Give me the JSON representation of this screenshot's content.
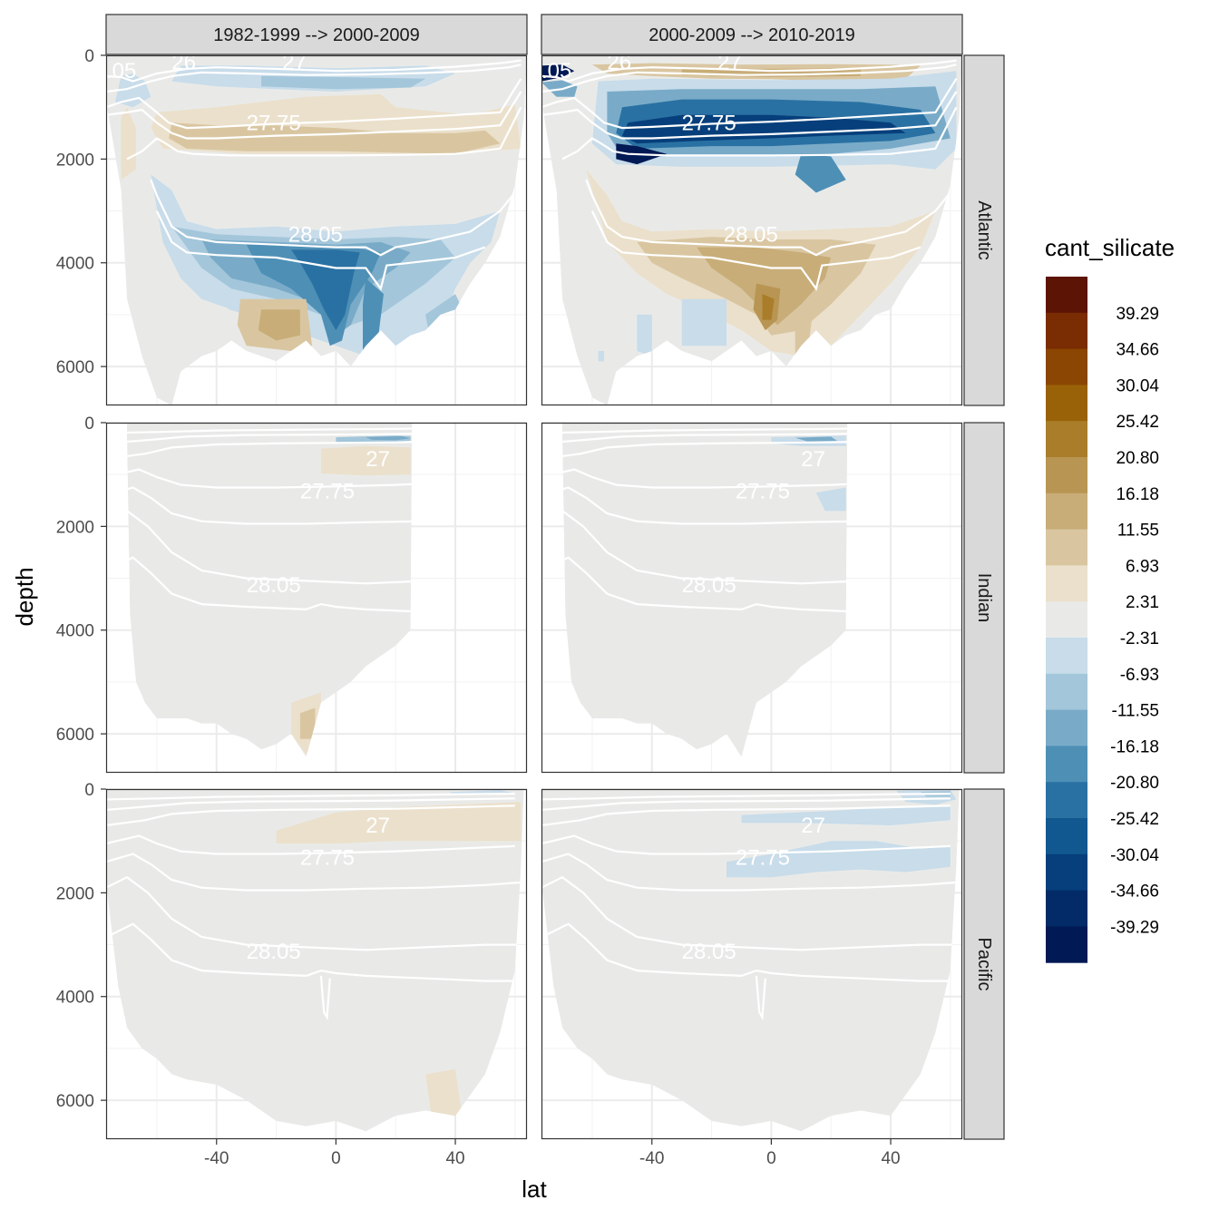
{
  "chart_data": {
    "type": "heatmap",
    "xlabel": "lat",
    "ylabel": "depth",
    "x_ticks": [
      -40,
      0,
      40
    ],
    "x_tick_labels": [
      "-40",
      "0",
      "40"
    ],
    "xlim": [
      -77,
      64
    ],
    "y_ticks": [
      0,
      2000,
      4000,
      6000
    ],
    "y_tick_labels": [
      "0",
      "2000",
      "4000",
      "6000"
    ],
    "ylim": [
      6750,
      0
    ],
    "y_reversed": true,
    "col_facets": [
      "1982-1999 --> 2000-2009",
      "2000-2009 --> 2010-2019"
    ],
    "row_facets": [
      "Atlantic",
      "Indian",
      "Pacific"
    ],
    "legend": {
      "title": "cant_silicate",
      "position": "right",
      "break_labels": [
        "39.29",
        "34.66",
        "30.04",
        "25.42",
        "20.80",
        "16.18",
        "11.55",
        "6.93",
        "2.31",
        "-2.31",
        "-6.93",
        "-11.55",
        "-16.18",
        "-20.80",
        "-25.42",
        "-30.04",
        "-34.66",
        "-39.29"
      ],
      "colors": [
        "#5c1405",
        "#7a2c03",
        "#8a4602",
        "#9a6208",
        "#a97d2a",
        "#b99553",
        "#c8ad78",
        "#d9c6a1",
        "#ebe0cb",
        "#e9eae8",
        "#c8dcea",
        "#a3c6da",
        "#79abc8",
        "#4e8fb6",
        "#2a71a3",
        "#115790",
        "#063f7b",
        "#022b67",
        "#011954"
      ]
    },
    "contour_isolines": [
      "27",
      "27.75",
      "28.05"
    ],
    "panels": [
      {
        "basin": "Atlantic",
        "period": "1982-1999 --> 2000-2009",
        "dominant": "-2.31 to 2.31",
        "notable_fields": [
          {
            "lat": [
              -25,
              30
            ],
            "depth": [
              400,
              700
            ],
            "class": "-11.55 to -6.93"
          },
          {
            "lat": [
              -30,
              50
            ],
            "depth": [
              1200,
              1900
            ],
            "class": "2.31 to 11.55"
          },
          {
            "lat": [
              -45,
              40
            ],
            "depth": [
              3400,
              5900
            ],
            "class": "-25.42 to -2.31"
          },
          {
            "lat": [
              -30,
              -5
            ],
            "depth": [
              4700,
              5700
            ],
            "class": "6.93 to 16.18"
          }
        ]
      },
      {
        "basin": "Atlantic",
        "period": "2000-2009 --> 2010-2019",
        "dominant": "-2.31 to 2.31",
        "notable_fields": [
          {
            "lat": [
              -55,
              62
            ],
            "depth": [
              600,
              2100
            ],
            "class": "-39.29 to -6.93"
          },
          {
            "lat": [
              -40,
              30
            ],
            "depth": [
              150,
              500
            ],
            "class": "6.93 to 16.18"
          },
          {
            "lat": [
              -45,
              40
            ],
            "depth": [
              3300,
              5800
            ],
            "class": "2.31 to 25.42"
          }
        ]
      },
      {
        "basin": "Indian",
        "period": "1982-1999 --> 2000-2009",
        "dominant": "-2.31 to 2.31",
        "notable_fields": [
          {
            "lat": [
              0,
              25
            ],
            "depth": [
              250,
              450
            ],
            "class": "-11.55 to -2.31"
          },
          {
            "lat": [
              -5,
              25
            ],
            "depth": [
              700,
              1000
            ],
            "class": "2.31 to 6.93"
          },
          {
            "lat": [
              -10,
              -5
            ],
            "depth": [
              5400,
              6300
            ],
            "class": "2.31 to 11.55"
          }
        ]
      },
      {
        "basin": "Indian",
        "period": "2000-2009 --> 2010-2019",
        "dominant": "-2.31 to 2.31",
        "notable_fields": [
          {
            "lat": [
              0,
              25
            ],
            "depth": [
              250,
              450
            ],
            "class": "-16.18 to -2.31"
          },
          {
            "lat": [
              15,
              25
            ],
            "depth": [
              1300,
              1700
            ],
            "class": "-6.93 to -2.31"
          }
        ]
      },
      {
        "basin": "Pacific",
        "period": "1982-1999 --> 2000-2009",
        "dominant": "-2.31 to 2.31",
        "notable_fields": [
          {
            "lat": [
              -20,
              60
            ],
            "depth": [
              300,
              1000
            ],
            "class": "2.31 to 6.93"
          },
          {
            "lat": [
              40,
              55
            ],
            "depth": [
              0,
              150
            ],
            "class": "-6.93 to -2.31"
          },
          {
            "lat": [
              30,
              45
            ],
            "depth": [
              5400,
              6700
            ],
            "class": "2.31 to 6.93"
          }
        ]
      },
      {
        "basin": "Pacific",
        "period": "2000-2009 --> 2010-2019",
        "dominant": "-2.31 to 2.31",
        "notable_fields": [
          {
            "lat": [
              -10,
              60
            ],
            "depth": [
              300,
              700
            ],
            "class": "-6.93 to -2.31"
          },
          {
            "lat": [
              -15,
              60
            ],
            "depth": [
              1000,
              1700
            ],
            "class": "-6.93 to -2.31"
          },
          {
            "lat": [
              40,
              60
            ],
            "depth": [
              0,
              250
            ],
            "class": "-11.55 to -2.31"
          }
        ]
      }
    ]
  }
}
